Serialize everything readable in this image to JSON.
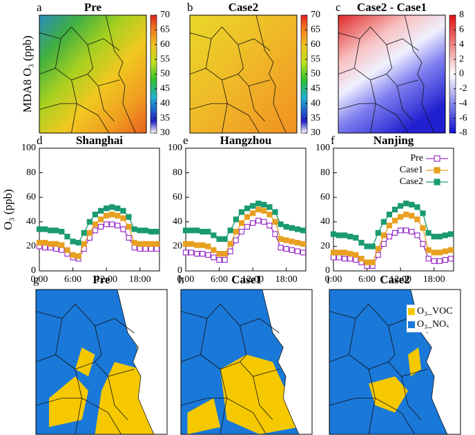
{
  "chart_data": [
    {
      "type": "map",
      "label": "a",
      "title": "Pre",
      "ylabel": "MDA8 O₃ (ppb)",
      "clim": [
        30,
        70
      ],
      "cticks": [
        30,
        35,
        40,
        45,
        50,
        55,
        60,
        65,
        70
      ]
    },
    {
      "type": "map",
      "label": "b",
      "title": "Case2",
      "clim": [
        30,
        70
      ],
      "cticks": [
        30,
        35,
        40,
        45,
        50,
        55,
        60,
        65,
        70
      ]
    },
    {
      "type": "map",
      "label": "c",
      "title": "Case2 - Case1",
      "clim": [
        -8,
        8
      ],
      "cticks": [
        -8,
        -6,
        -4,
        -2,
        0,
        2,
        4,
        6,
        8
      ]
    },
    {
      "type": "line",
      "label": "d",
      "title": "Shanghai",
      "ylabel": "O₃ (ppb)",
      "x": [
        0,
        1,
        2,
        3,
        4,
        5,
        6,
        7,
        8,
        9,
        10,
        11,
        12,
        13,
        14,
        15,
        16,
        17,
        18,
        19,
        20,
        21
      ],
      "xlim": [
        0,
        21.5
      ],
      "xticks": [
        {
          "value": 0,
          "label": "0:00"
        },
        {
          "value": 6,
          "label": "6:00"
        },
        {
          "value": 12,
          "label": "12:00"
        },
        {
          "value": 18,
          "label": "18:00"
        }
      ],
      "ylim": [
        0,
        100
      ],
      "yticks": [
        0,
        20,
        40,
        60,
        80,
        100
      ],
      "series": [
        {
          "color": "#9b30c8",
          "marker": "open-square",
          "values": [
            20,
            19,
            19,
            18,
            17,
            14,
            11,
            10,
            18,
            27,
            33,
            36,
            38,
            38,
            37,
            34,
            27,
            19,
            18,
            18,
            18,
            18
          ]
        },
        {
          "color": "#e8a020",
          "marker": "square",
          "values": [
            23,
            23,
            22,
            22,
            21,
            17,
            13,
            12,
            22,
            31,
            38,
            42,
            45,
            46,
            45,
            43,
            36,
            23,
            22,
            22,
            22,
            22
          ]
        },
        {
          "color": "#1a9a70",
          "marker": "square",
          "values": [
            34,
            34,
            33,
            33,
            32,
            28,
            24,
            23,
            31,
            40,
            46,
            49,
            51,
            52,
            51,
            49,
            44,
            34,
            33,
            33,
            32,
            32
          ]
        }
      ]
    },
    {
      "type": "line",
      "label": "e",
      "title": "Hangzhou",
      "x": [
        0,
        1,
        2,
        3,
        4,
        5,
        6,
        7,
        8,
        9,
        10,
        11,
        12,
        13,
        14,
        15,
        16,
        17,
        18,
        19,
        20,
        21
      ],
      "xlim": [
        0,
        21.5
      ],
      "xticks": [
        {
          "value": 0,
          "label": "0:00"
        },
        {
          "value": 6,
          "label": "6:00"
        },
        {
          "value": 12,
          "label": "12:00"
        },
        {
          "value": 18,
          "label": "18:00"
        }
      ],
      "ylim": [
        0,
        100
      ],
      "yticks": [
        0,
        20,
        40,
        60,
        80,
        100
      ],
      "series": [
        {
          "color": "#9b30c8",
          "marker": "open-square",
          "values": [
            15,
            15,
            14,
            14,
            13,
            11,
            9,
            9,
            16,
            25,
            32,
            36,
            39,
            41,
            40,
            37,
            30,
            19,
            18,
            17,
            16,
            15
          ]
        },
        {
          "color": "#e8a020",
          "marker": "square",
          "values": [
            22,
            22,
            21,
            21,
            20,
            17,
            14,
            14,
            22,
            32,
            39,
            44,
            47,
            50,
            49,
            46,
            40,
            26,
            25,
            24,
            23,
            22
          ]
        },
        {
          "color": "#1a9a70",
          "marker": "square",
          "values": [
            33,
            33,
            33,
            32,
            32,
            29,
            26,
            26,
            33,
            42,
            48,
            51,
            53,
            55,
            54,
            52,
            48,
            38,
            36,
            35,
            34,
            33
          ]
        }
      ]
    },
    {
      "type": "line",
      "label": "f",
      "title": "Nanjing",
      "legend": "upper right",
      "x": [
        0,
        1,
        2,
        3,
        4,
        5,
        6,
        7,
        8,
        9,
        10,
        11,
        12,
        13,
        14,
        15,
        16,
        17,
        18,
        19,
        20,
        21
      ],
      "xlim": [
        0,
        21.5
      ],
      "xticks": [
        {
          "value": 0,
          "label": "0:00"
        },
        {
          "value": 6,
          "label": "6:00"
        },
        {
          "value": 12,
          "label": "12:00"
        },
        {
          "value": 18,
          "label": "18:00"
        }
      ],
      "ylim": [
        0,
        100
      ],
      "yticks": [
        0,
        20,
        40,
        60,
        80,
        100
      ],
      "series": [
        {
          "name": "Pre",
          "color": "#9b30c8",
          "marker": "open-square",
          "values": [
            11,
            11,
            10,
            10,
            9,
            7,
            4,
            4,
            13,
            22,
            28,
            31,
            33,
            33,
            32,
            29,
            22,
            10,
            8,
            8,
            9,
            10
          ]
        },
        {
          "name": "Case1",
          "color": "#e8a020",
          "marker": "square",
          "values": [
            15,
            15,
            15,
            14,
            13,
            10,
            7,
            7,
            18,
            29,
            37,
            41,
            44,
            46,
            45,
            42,
            35,
            17,
            15,
            15,
            16,
            17
          ]
        },
        {
          "name": "Case2",
          "color": "#1a9a70",
          "marker": "square",
          "values": [
            30,
            29,
            29,
            28,
            27,
            23,
            20,
            20,
            31,
            40,
            46,
            50,
            53,
            55,
            54,
            52,
            47,
            31,
            28,
            28,
            29,
            30
          ]
        }
      ]
    },
    {
      "type": "map",
      "label": "g",
      "title": "Pre"
    },
    {
      "type": "map",
      "label": "h",
      "title": "Case1"
    },
    {
      "type": "map",
      "label": "i",
      "title": "Case2",
      "legend": [
        {
          "name": "O₃_VOC",
          "color": "#f5c800"
        },
        {
          "name": "O₃_NOₓ",
          "color": "#1a78d8"
        }
      ]
    }
  ]
}
